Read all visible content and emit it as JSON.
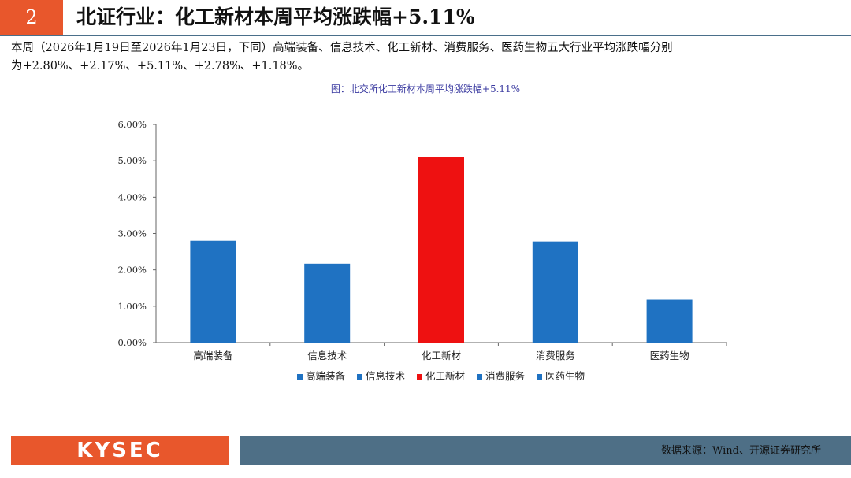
{
  "header": {
    "page_number": "2",
    "title": "北证行业：化工新材本周平均涨跌幅+5.11%"
  },
  "summary": {
    "line1": "本周（2026年1月19日至2026年1月23日，下同）高端装备、信息技术、化工新材、消费服务、医药生物五大行业平均涨跌幅分别",
    "line2": "为+2.80%、+2.17%、+5.11%、+2.78%、+1.18%。"
  },
  "chart_caption": "图：北交所化工新材本周平均涨跌幅+5.11%",
  "chart_data": {
    "type": "bar",
    "categories": [
      "高端装备",
      "信息技术",
      "化工新材",
      "消费服务",
      "医药生物"
    ],
    "values": [
      2.8,
      2.17,
      5.11,
      2.78,
      1.18
    ],
    "colors": [
      "#1f72c2",
      "#1f72c2",
      "#ee1111",
      "#1f72c2",
      "#1f72c2"
    ],
    "y_ticks": [
      "0.00%",
      "1.00%",
      "2.00%",
      "3.00%",
      "4.00%",
      "5.00%",
      "6.00%"
    ],
    "ylim": [
      0,
      6
    ],
    "unit": "%",
    "grid": false,
    "legend_position": "bottom",
    "legend": [
      "高端装备",
      "信息技术",
      "化工新材",
      "消费服务",
      "医药生物"
    ]
  },
  "footer": {
    "logo_text": "KYSEC",
    "source": "数据来源：Wind、开源证券研究所"
  }
}
